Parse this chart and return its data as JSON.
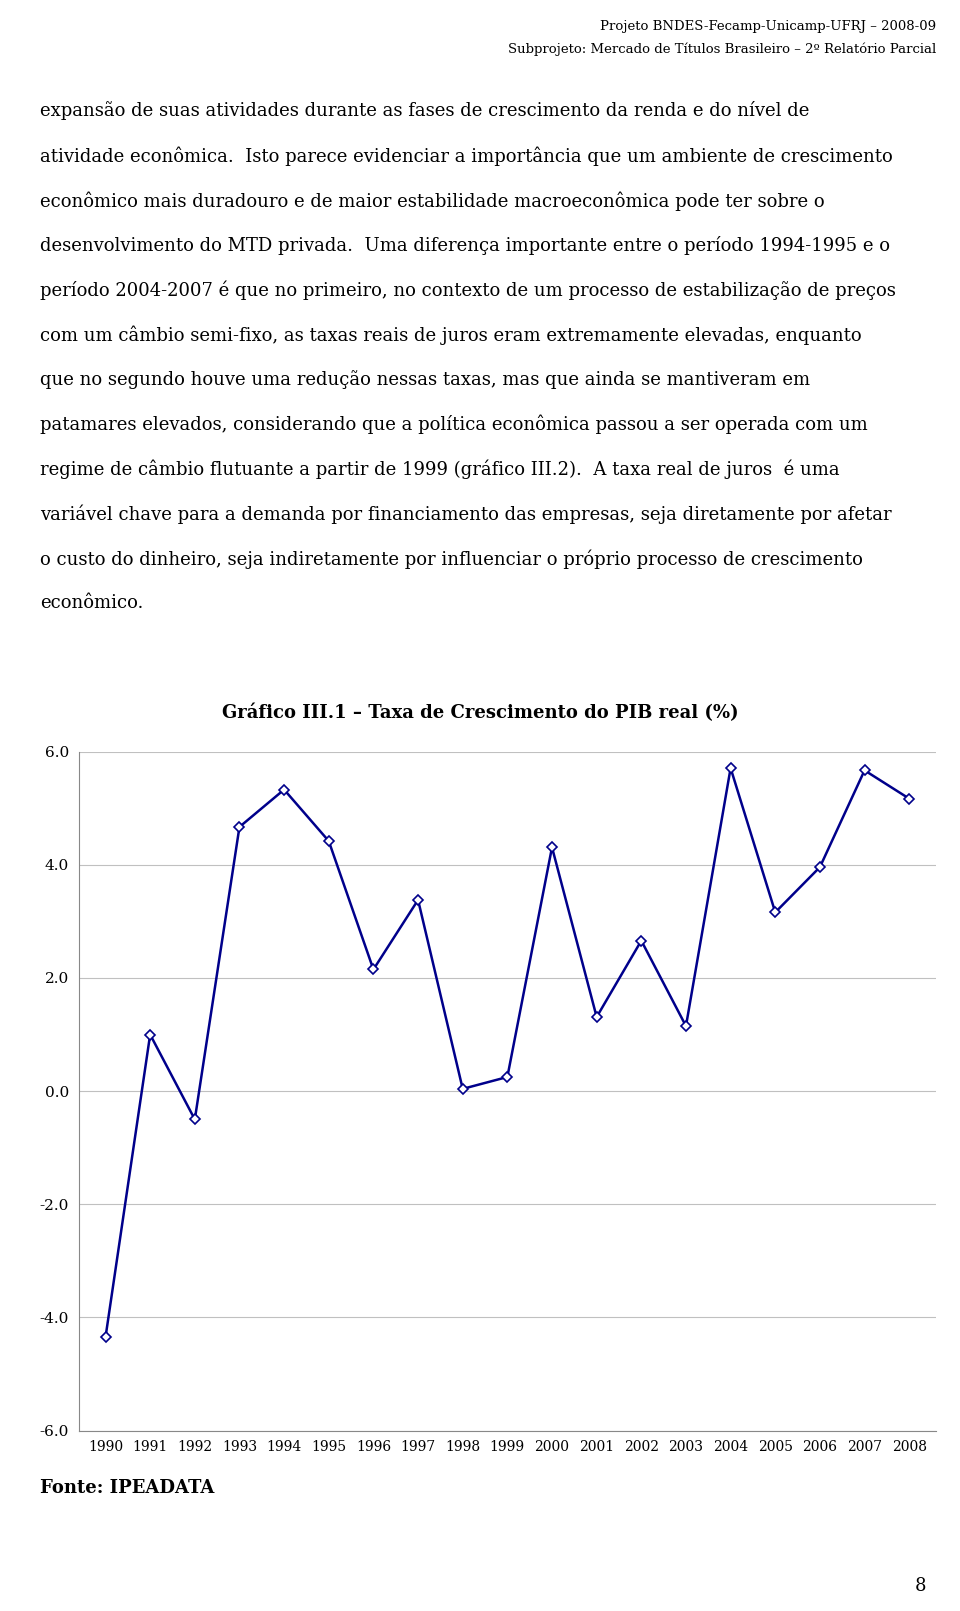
{
  "title": "Gráfico III.1 – Taxa de Crescimento do PIB real (%)",
  "years": [
    1990,
    1991,
    1992,
    1993,
    1994,
    1995,
    1996,
    1997,
    1998,
    1999,
    2000,
    2001,
    2002,
    2003,
    2004,
    2005,
    2006,
    2007,
    2008
  ],
  "values": [
    -4.35,
    1.0,
    -0.5,
    4.67,
    5.33,
    4.42,
    2.15,
    3.38,
    0.04,
    0.25,
    4.31,
    1.31,
    2.66,
    1.15,
    5.71,
    3.16,
    3.96,
    5.67,
    5.17
  ],
  "line_color": "#00008B",
  "marker": "D",
  "marker_size": 5,
  "ylim": [
    -6.0,
    6.0
  ],
  "yticks": [
    -6.0,
    -4.0,
    -2.0,
    0.0,
    2.0,
    4.0,
    6.0
  ],
  "source_text": "Fonte: IPEADATA",
  "header_line1": "Projeto BNDES-Fecamp-Unicamp-UFRJ – 2008-09",
  "header_line2": "Subprojeto: Mercado de Títulos Brasileiro – 2º Relatório Parcial",
  "page_number": "8",
  "body_text": [
    "expansão de suas atividades durante as fases de crescimento da renda e do nível de",
    "atividade econômica.  Isto parece evidenciar a importância que um ambiente de crescimento",
    "econômico mais duradouro e de maior estabilidade macroeconômica pode ter sobre o",
    "desenvolvimento do MTD privada.  Uma diferença importante entre o período 1994-1995 e o",
    "período 2004-2007 é que no primeiro, no contexto de um processo de estabilização de preços",
    "com um câmbio semi-fixo, as taxas reais de juros eram extremamente elevadas, enquanto",
    "que no segundo houve uma redução nessas taxas, mas que ainda se mantiveram em",
    "patamares elevados, considerando que a política econômica passou a ser operada com um",
    "regime de câmbio flutuante a partir de 1999 (gráfico III.2).  A taxa real de juros  é uma",
    "variável chave para a demanda por financiamento das empresas, seja diretamente por afetar",
    "o custo do dinheiro, seja indiretamente por influenciar o próprio processo de crescimento",
    "econômico."
  ],
  "background_color": "#ffffff",
  "grid_color": "#c0c0c0",
  "text_color": "#000000"
}
